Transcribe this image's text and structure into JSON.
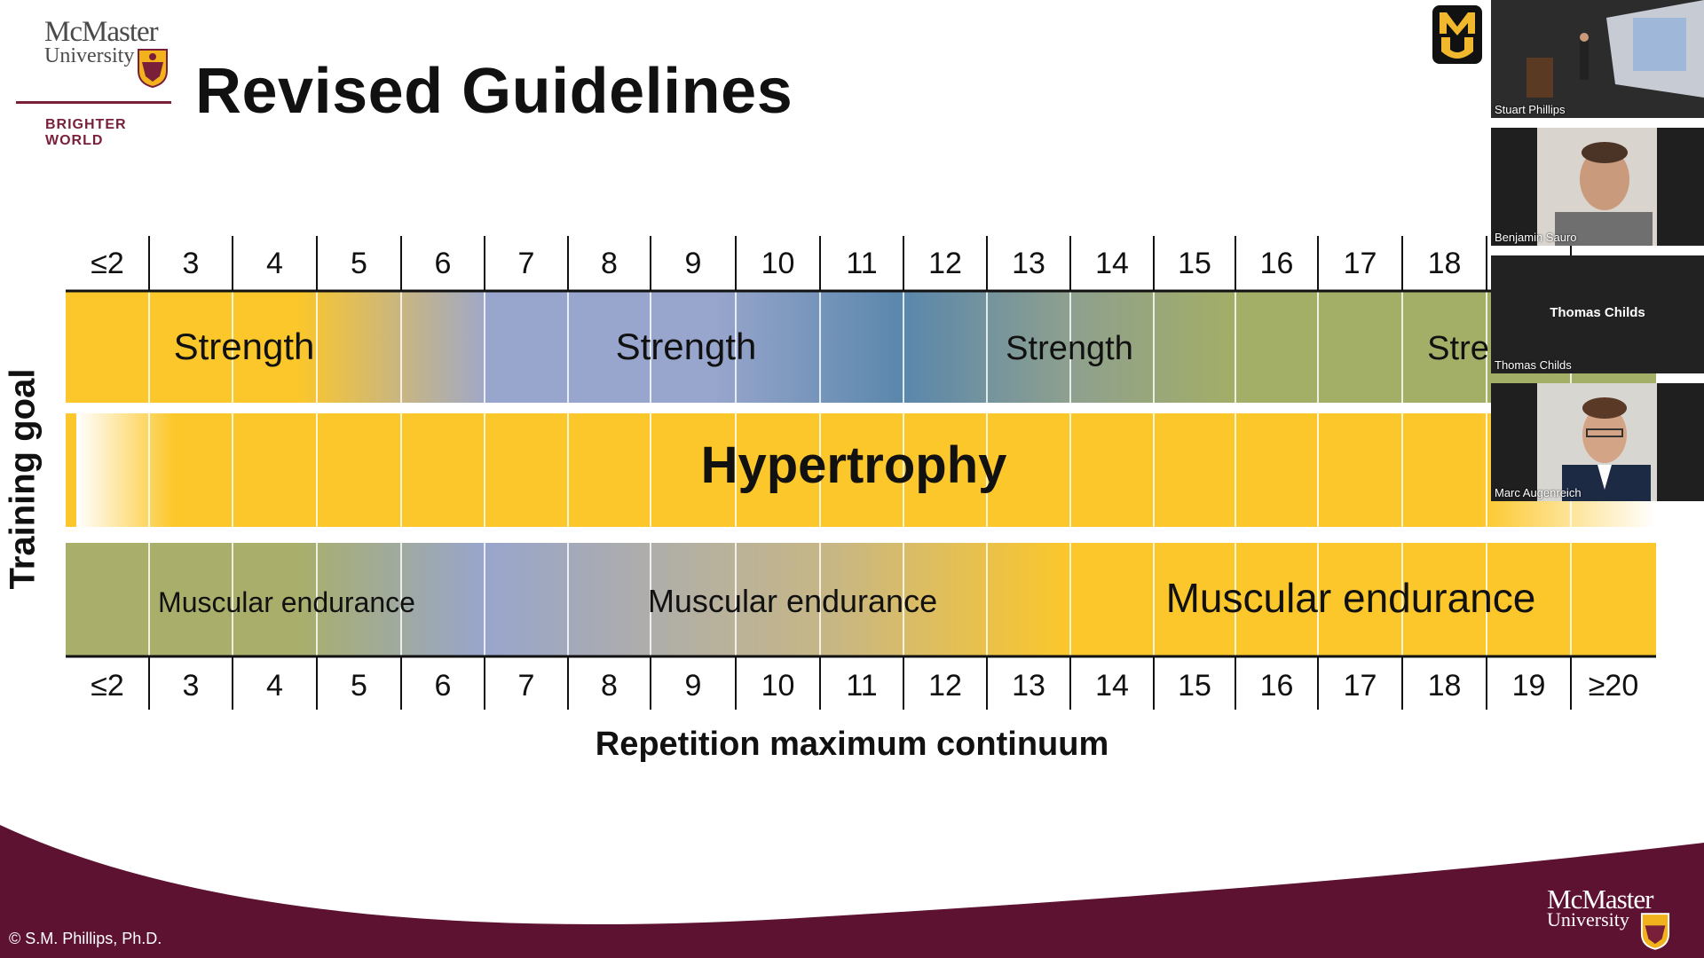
{
  "slide": {
    "title": "Revised Guidelines",
    "copyright": "© S.M. Phillips, Ph.D."
  },
  "logo": {
    "name_line1": "McMaster",
    "name_line2": "University",
    "tagline": "BRIGHTER WORLD",
    "color": "#7a1f3a"
  },
  "footer_logo": {
    "name_line1": "McMaster",
    "name_line2": "University"
  },
  "participants": [
    {
      "name": "Stuart Phillips"
    },
    {
      "name": "Benjamin Sauro"
    },
    {
      "name": "Thomas Childs",
      "center_label": "Thomas Childs"
    },
    {
      "name": "Marc Augenreich"
    }
  ],
  "chart_data": {
    "type": "table",
    "xlabel": "Repetition maximum continuum",
    "ylabel": "Training goal",
    "categories": [
      "≤2",
      "3",
      "4",
      "5",
      "6",
      "7",
      "8",
      "9",
      "10",
      "11",
      "12",
      "13",
      "14",
      "15",
      "16",
      "17",
      "18",
      "19",
      "≥20"
    ],
    "rows": [
      {
        "goal": "Strength",
        "segments": [
          {
            "label": "Strength",
            "from": "≤2",
            "to": "6",
            "color": "#fcc72a"
          },
          {
            "label": "Strength",
            "from": "7",
            "to": "11",
            "color": "#98a5cc"
          },
          {
            "label": "Strength",
            "from": "12",
            "to": "15",
            "color": "#5a87ac"
          },
          {
            "label": "Strength",
            "from": "16",
            "to": "≥20",
            "color": "#a3ae66"
          }
        ]
      },
      {
        "goal": "Hypertrophy",
        "segments": [
          {
            "label": "Hypertrophy",
            "from": "≤2",
            "to": "≥20",
            "color": "#fcc72a"
          }
        ]
      },
      {
        "goal": "Muscular endurance",
        "segments": [
          {
            "label": "Muscular endurance",
            "from": "≤2",
            "to": "6",
            "color": "#a9af6a"
          },
          {
            "label": "Muscular endurance",
            "from": "7",
            "to": "13",
            "color": "#98a5cc"
          },
          {
            "label": "Muscular endurance",
            "from": "14",
            "to": "≥20",
            "color": "#fcc72a"
          }
        ]
      }
    ]
  }
}
